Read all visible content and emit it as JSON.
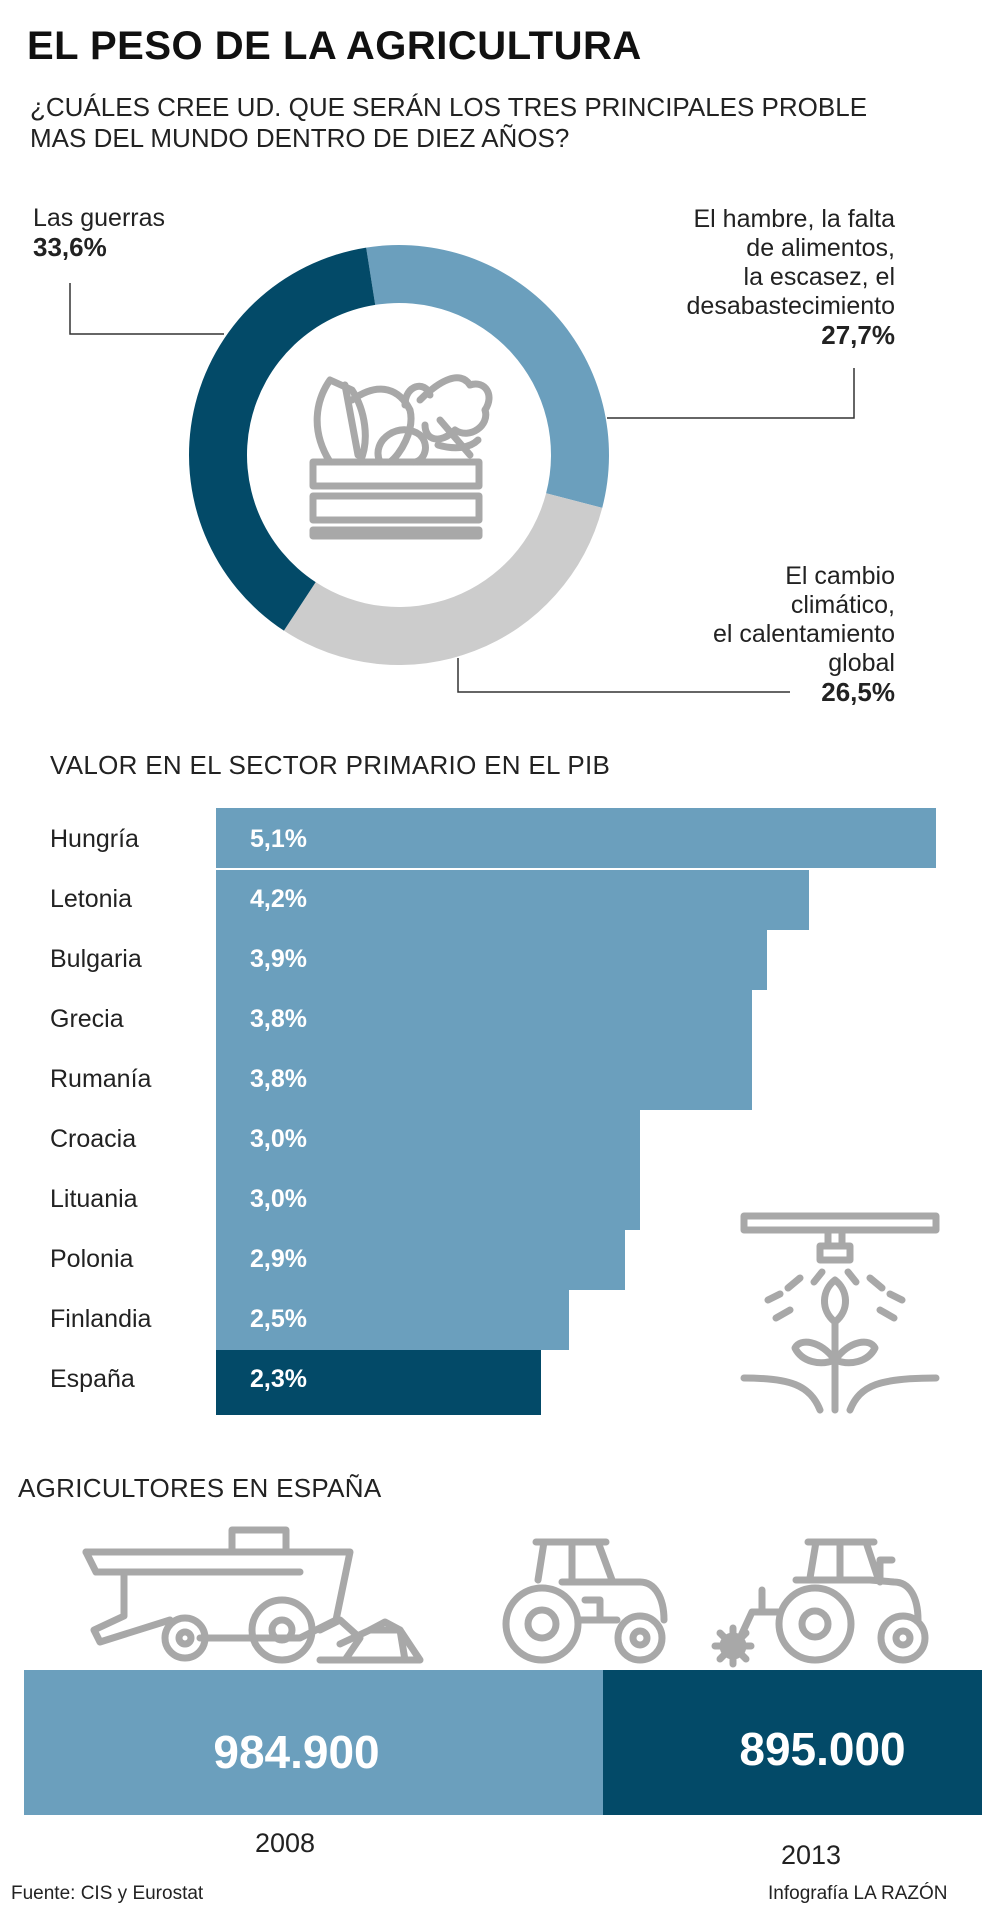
{
  "header": {
    "title": "EL PESO DE LA AGRICULTURA",
    "question_line1": "¿CUÁLES CREE UD. QUE SERÁN LOS TRES PRINCIPALES PROBLE",
    "question_line2": "MAS DEL MUNDO DENTRO DE DIEZ AÑOS?"
  },
  "colors": {
    "dark": "#034a68",
    "medium": "#6b9fbd",
    "light": "#cccccc",
    "icon": "#a8a8a8"
  },
  "icons": [
    "vegetable-crate-icon",
    "irrigation-sprout-icon",
    "combine-harvester-icon",
    "tractor-icon",
    "tractor-with-tiller-icon"
  ],
  "chart_data": [
    {
      "type": "pie",
      "variant": "donut",
      "slices": [
        {
          "label_lines": [
            "Las guerras"
          ],
          "pct_text": "33,6%",
          "value": 33.6,
          "color": "#034a68"
        },
        {
          "label_lines": [
            "El hambre, la falta",
            "de alimentos,",
            "la escasez, el",
            "desabastecimiento"
          ],
          "pct_text": "27,7%",
          "value": 27.7,
          "color": "#6b9fbd"
        },
        {
          "label_lines": [
            "El cambio",
            "climático,",
            "el calentamiento",
            "global"
          ],
          "pct_text": "26,5%",
          "value": 26.5,
          "color": "#cccccc"
        }
      ]
    },
    {
      "type": "bar",
      "orientation": "horizontal",
      "title": "VALOR EN EL SECTOR PRIMARIO EN EL PIB",
      "categories": [
        "Hungría",
        "Letonia",
        "Bulgaria",
        "Grecia",
        "Rumanía",
        "Croacia",
        "Lituania",
        "Polonia",
        "Finlandia",
        "España"
      ],
      "values": [
        5.1,
        4.2,
        3.9,
        3.8,
        3.8,
        3.0,
        3.0,
        2.9,
        2.5,
        2.3
      ],
      "value_labels": [
        "5,1%",
        "4,2%",
        "3,9%",
        "3,8%",
        "3,8%",
        "3,0%",
        "3,0%",
        "2,9%",
        "2,5%",
        "2,3%"
      ],
      "highlight": "España",
      "bar_color": "#6b9fbd",
      "highlight_color": "#034a68"
    },
    {
      "type": "bar",
      "title": "AGRICULTORES EN ESPAÑA",
      "categories": [
        "2008",
        "2013"
      ],
      "values": [
        984900,
        895000
      ],
      "value_labels": [
        "984.900",
        "895.000"
      ],
      "colors": [
        "#6b9fbd",
        "#034a68"
      ]
    }
  ],
  "footer": {
    "source": "Fuente: CIS y Eurostat",
    "credit": "Infografía LA RAZÓN"
  }
}
